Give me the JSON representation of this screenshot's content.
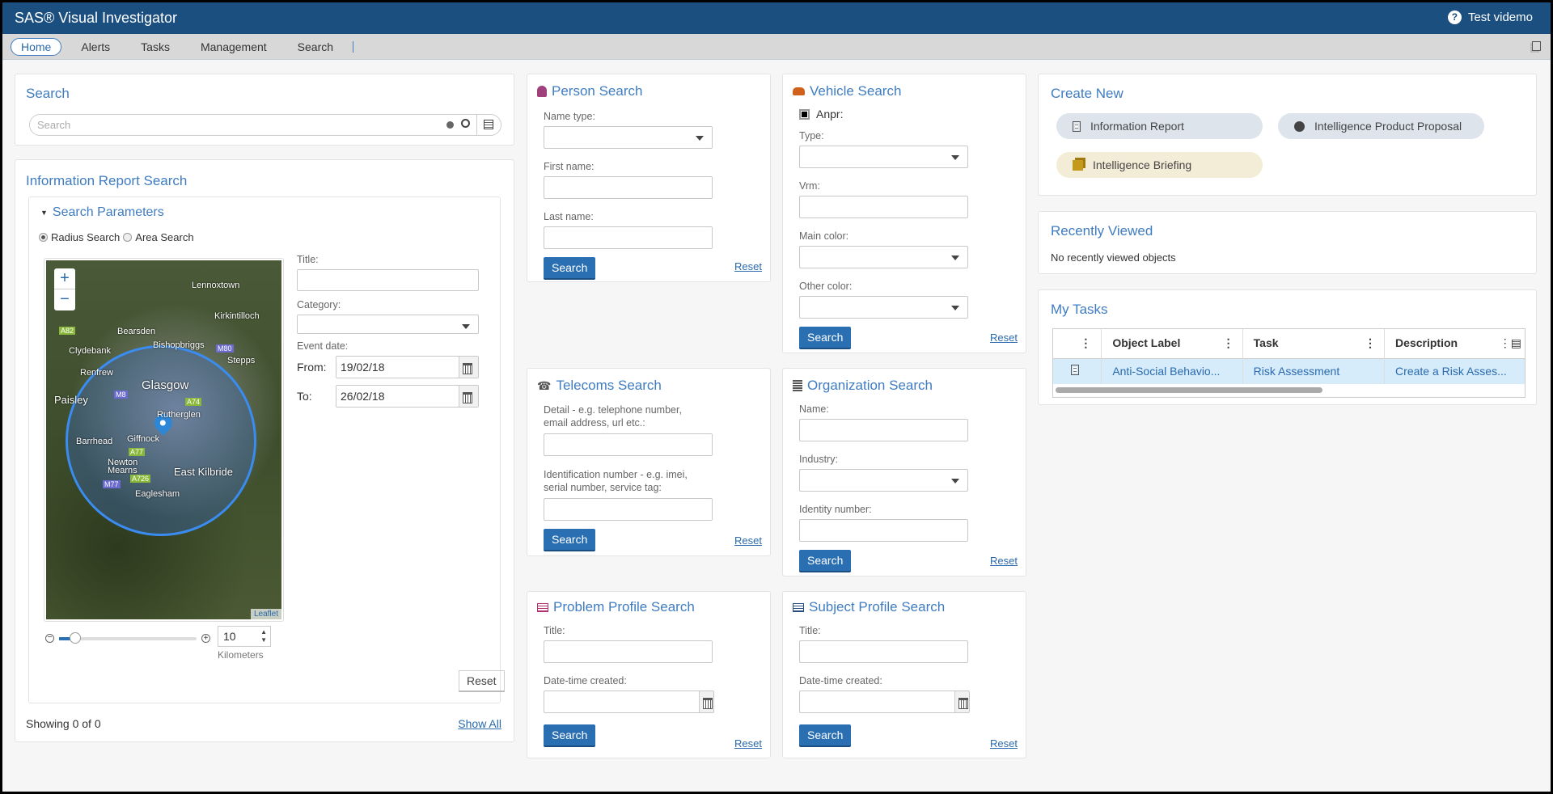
{
  "app": {
    "title": "SAS® Visual Investigator",
    "user": "Test videmo"
  },
  "nav": {
    "tabs": [
      "Home",
      "Alerts",
      "Tasks",
      "Management",
      "Search"
    ],
    "active": "Home"
  },
  "search": {
    "title": "Search",
    "placeholder": "Search"
  },
  "info_report": {
    "title": "Information Report Search",
    "params_title": "Search Parameters",
    "radius_label": "Radius Search",
    "area_label": "Area Search",
    "mode": "Radius Search",
    "map": {
      "labels": [
        "Lennoxtown",
        "Kirkintilloch",
        "Bearsden",
        "Clydebank",
        "Bishopbriggs",
        "Stepps",
        "Renfrew",
        "Glasgow",
        "Paisley",
        "Rutherglen",
        "Barrhead",
        "Giffnock",
        "Newton Mearns",
        "East Kilbride",
        "Eaglesham"
      ],
      "roads": [
        "A82",
        "M80",
        "M8",
        "A74",
        "A77",
        "A726",
        "M77"
      ],
      "attribution": "Leaflet",
      "zoom_in": "+",
      "zoom_out": "−"
    },
    "radius_value": "10",
    "radius_unit": "Kilometers",
    "radius_slider_fraction": 0.12,
    "title_label": "Title:",
    "category_label": "Category:",
    "event_date_label": "Event date:",
    "from_label": "From:",
    "from_value": "19/02/18",
    "to_label": "To:",
    "to_value": "26/02/18",
    "reset": "Reset",
    "showing": "Showing 0 of 0",
    "show_all": "Show All"
  },
  "person": {
    "title": "Person Search",
    "name_type": "Name type:",
    "first_name": "First name:",
    "last_name": "Last name:",
    "search": "Search",
    "reset": "Reset"
  },
  "vehicle": {
    "title": "Vehicle Search",
    "anpr": "Anpr:",
    "type": "Type:",
    "vrm": "Vrm:",
    "main_color": "Main color:",
    "other_color": "Other color:",
    "search": "Search",
    "reset": "Reset"
  },
  "telecoms": {
    "title": "Telecoms Search",
    "detail": "Detail - e.g. telephone number, email address, url etc.:",
    "ident": "Identification number - e.g. imei, serial number, service tag:",
    "search": "Search",
    "reset": "Reset"
  },
  "organization": {
    "title": "Organization Search",
    "name": "Name:",
    "industry": "Industry:",
    "identity": "Identity number:",
    "search": "Search",
    "reset": "Reset"
  },
  "problem": {
    "title": "Problem Profile Search",
    "title_label": "Title:",
    "date_label": "Date-time created:",
    "search": "Search",
    "reset": "Reset"
  },
  "subject": {
    "title": "Subject Profile Search",
    "title_label": "Title:",
    "date_label": "Date-time created:",
    "search": "Search",
    "reset": "Reset"
  },
  "create_new": {
    "title": "Create New",
    "items": [
      "Information Report",
      "Intelligence Product Proposal",
      "Intelligence Briefing"
    ]
  },
  "recent": {
    "title": "Recently Viewed",
    "empty": "No recently viewed objects"
  },
  "tasks": {
    "title": "My Tasks",
    "columns": [
      "Object Label",
      "Task",
      "Description"
    ],
    "rows": [
      {
        "object": "Anti-Social Behavio...",
        "task": "Risk Assessment",
        "description": "Create a Risk Asses..."
      }
    ]
  },
  "colors": {
    "header": "#1b4f80",
    "accent": "#3f7cc0",
    "button": "#2b6fb3",
    "person_icon": "#a0407a",
    "vehicle_icon": "#d0601a",
    "problem_icon": "#b03070"
  }
}
